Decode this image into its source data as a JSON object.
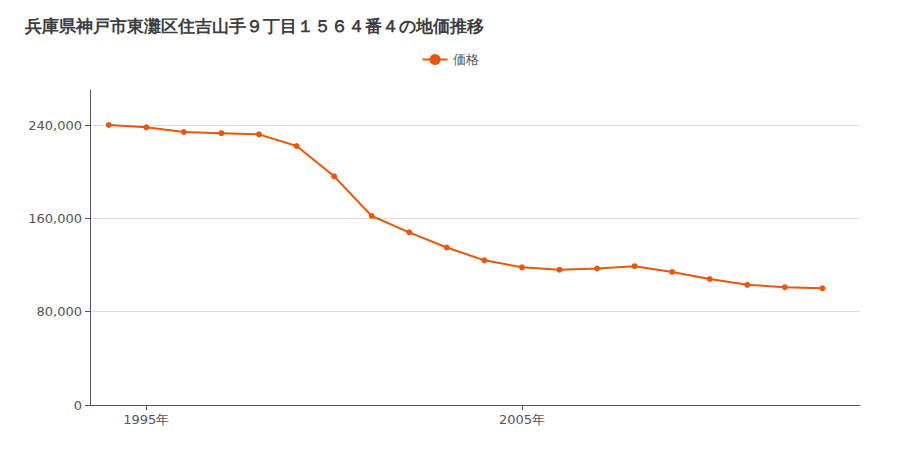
{
  "chart_data": {
    "type": "line",
    "title": "兵庫県神戸市東灘区住吉山手９丁目１５６４番４の地価推移",
    "x": [
      1994,
      1995,
      1996,
      1997,
      1998,
      1999,
      2000,
      2001,
      2002,
      2003,
      2004,
      2005,
      2006,
      2007,
      2008,
      2009,
      2010,
      2011,
      2012,
      2013
    ],
    "series": [
      {
        "name": "価格",
        "color": "#e8570a",
        "marker": "circle",
        "values": [
          240000,
          238000,
          234000,
          233000,
          232000,
          222000,
          196000,
          162000,
          148000,
          135000,
          124000,
          118000,
          116000,
          117000,
          119000,
          114000,
          108000,
          103000,
          101000,
          100000
        ]
      }
    ],
    "xlim": [
      1993.5,
      2014
    ],
    "xticks": [
      {
        "value": 1995,
        "label": "1995年"
      },
      {
        "value": 2005,
        "label": "2005年"
      }
    ],
    "ylim": [
      0,
      270000
    ],
    "yticks": [
      0,
      {
        "value": 80000,
        "label": "80,000"
      },
      {
        "value": 160000,
        "label": "160,000"
      },
      {
        "value": 240000,
        "label": "240,000"
      }
    ],
    "grid": true,
    "legend": "top"
  }
}
